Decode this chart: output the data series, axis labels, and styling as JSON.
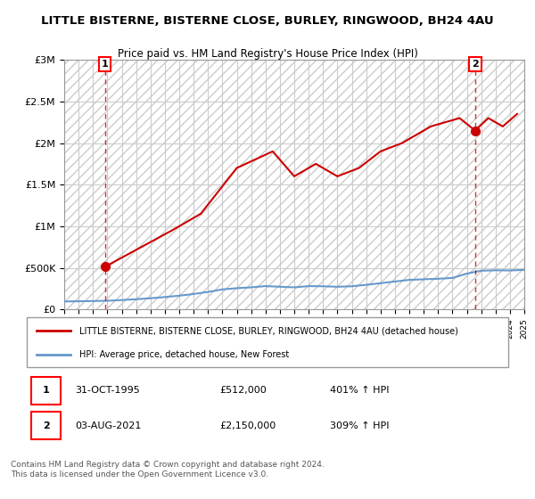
{
  "title": "LITTLE BISTERNE, BISTERNE CLOSE, BURLEY, RINGWOOD, BH24 4AU",
  "subtitle": "Price paid vs. HM Land Registry's House Price Index (HPI)",
  "legend_label_red": "LITTLE BISTERNE, BISTERNE CLOSE, BURLEY, RINGWOOD, BH24 4AU (detached house)",
  "legend_label_blue": "HPI: Average price, detached house, New Forest",
  "annotation1": "1    31-OCT-1995          £512,000          401% ↑ HPI",
  "annotation2": "2    03-AUG-2021          £2,150,000        309% ↑ HPI",
  "footer": "Contains HM Land Registry data © Crown copyright and database right 2024.\nThis data is licensed under the Open Government Licence v3.0.",
  "ylim": [
    0,
    3000000
  ],
  "yticks": [
    0,
    500000,
    1000000,
    1500000,
    2000000,
    2500000,
    3000000
  ],
  "ytick_labels": [
    "£0",
    "£500K",
    "£1M",
    "£1.5M",
    "£2M",
    "£2.5M",
    "£3M"
  ],
  "hpi_color": "#6699cc",
  "price_color": "#cc0000",
  "marker1_x": 1995.83,
  "marker1_y": 512000,
  "marker2_x": 2021.58,
  "marker2_y": 2150000,
  "marker1_label": "1",
  "marker2_label": "2",
  "hpi_data_x": [
    1993,
    1994,
    1995,
    1996,
    1997,
    1998,
    1999,
    2000,
    2001,
    2002,
    2003,
    2004,
    2005,
    2006,
    2007,
    2008,
    2009,
    2010,
    2011,
    2012,
    2013,
    2014,
    2015,
    2016,
    2017,
    2018,
    2019,
    2020,
    2021,
    2022,
    2023,
    2024,
    2025
  ],
  "hpi_data_y": [
    95000,
    98000,
    100000,
    104000,
    112000,
    122000,
    134000,
    148000,
    165000,
    185000,
    210000,
    240000,
    255000,
    265000,
    280000,
    272000,
    265000,
    280000,
    278000,
    272000,
    278000,
    295000,
    315000,
    335000,
    355000,
    362000,
    368000,
    378000,
    430000,
    465000,
    470000,
    468000,
    475000
  ],
  "price_data_x": [
    1995.83,
    2000.5,
    2002.5,
    2005.0,
    2007.5,
    2009.0,
    2010.5,
    2012.0,
    2013.5,
    2015.0,
    2016.5,
    2017.5,
    2018.5,
    2019.5,
    2020.5,
    2021.58,
    2022.5,
    2023.5,
    2024.5
  ],
  "price_data_y": [
    512000,
    950000,
    1150000,
    1700000,
    1900000,
    1600000,
    1750000,
    1600000,
    1700000,
    1900000,
    2000000,
    2100000,
    2200000,
    2250000,
    2300000,
    2150000,
    2300000,
    2200000,
    2350000
  ],
  "xmin": 1993,
  "xmax": 2025,
  "hatch_color": "#cccccc",
  "grid_color": "#cccccc",
  "background_color": "#ffffff"
}
